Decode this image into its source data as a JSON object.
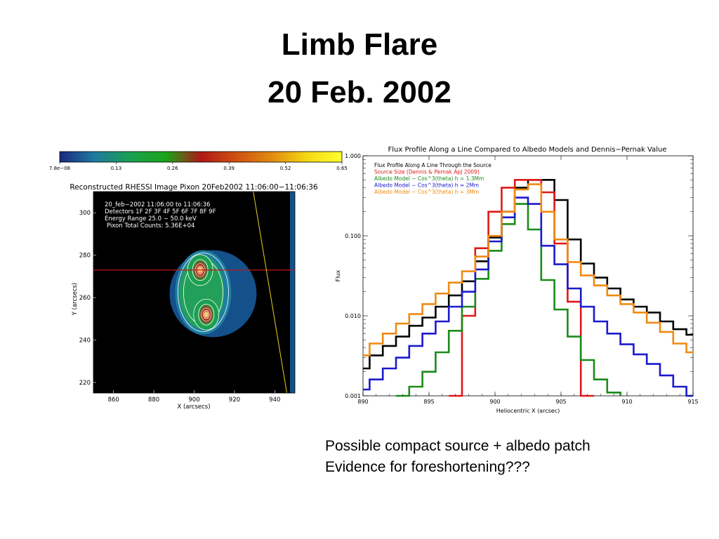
{
  "slide": {
    "title_line1": "Limb Flare",
    "title_line2": "20 Feb. 2002",
    "caption_line1": "Possible compact source + albedo patch",
    "caption_line2": "Evidence for foreshortening???"
  },
  "chart_data": [
    {
      "type": "heatmap",
      "title": "Reconstructed RHESSI Image Pixon 20Feb2002 11:06:00−11:06:36",
      "xlabel": "X (arcsecs)",
      "ylabel": "Y (arcsecs)",
      "xlim": [
        850,
        950
      ],
      "ylim": [
        215,
        310
      ],
      "xticks": [
        "860",
        "880",
        "900",
        "920",
        "940"
      ],
      "yticks": [
        "220",
        "240",
        "260",
        "280",
        "300"
      ],
      "colorbar": {
        "ticks": [
          "7.8e−08",
          "0.13",
          "0.26",
          "0.39",
          "0.52",
          "0.65"
        ],
        "colors": [
          "#1a2a80",
          "#1e7aa0",
          "#1aa050",
          "#19a519",
          "#b01818",
          "#d05010",
          "#e08a10",
          "#f5d812",
          "#ffff30"
        ]
      },
      "annotations": [
        "20_feb−2002 11:06:00 to 11:06:36",
        "Detectors 1F 2F 3F 4F 5F 6F 7F 8F 9F",
        "Energy Range 25.0 − 50.0 keV",
        "Pixon Total Counts: 5.36E+04"
      ],
      "sources": [
        {
          "x": 903,
          "y": 273,
          "peak": "high"
        },
        {
          "x": 906,
          "y": 252,
          "peak": "high"
        }
      ],
      "profile_line_y": 273,
      "limb_line": {
        "x1": 929,
        "y1": 312,
        "x2": 946,
        "y2": 215
      }
    },
    {
      "type": "line",
      "title": "Flux Profile Along a Line Compared to Albedo Models and Dennis−Pernak Value",
      "xlabel": "Heliocentric X (arcsec)",
      "ylabel": "Flux",
      "xlim": [
        890,
        915
      ],
      "ylim": [
        0.001,
        1.0
      ],
      "yscale": "log",
      "xticks": [
        "890",
        "895",
        "900",
        "905",
        "910",
        "915"
      ],
      "yticks": [
        "0.001",
        "0.010",
        "0.100",
        "1.000"
      ],
      "legend_placement": "top-left",
      "x": [
        890,
        891,
        892,
        893,
        894,
        895,
        896,
        897,
        898,
        899,
        900,
        901,
        902,
        903,
        904,
        905,
        906,
        907,
        908,
        909,
        910,
        911,
        912,
        913,
        914,
        915
      ],
      "series": [
        {
          "name": "Flux Profile Along A Line Through the Source",
          "color": "#000000",
          "values": [
            0.0022,
            0.0032,
            0.0042,
            0.0055,
            0.0075,
            0.0095,
            0.013,
            0.018,
            0.027,
            0.048,
            0.095,
            0.2,
            0.4,
            0.5,
            0.5,
            0.28,
            0.09,
            0.045,
            0.03,
            0.022,
            0.016,
            0.013,
            0.011,
            0.0085,
            0.0068,
            0.0058
          ]
        },
        {
          "name": "Source Size (Dennis & Pernak ApJ 2009)",
          "color": "#e01818",
          "values": [
            null,
            null,
            null,
            null,
            null,
            null,
            null,
            0.001,
            0.01,
            0.07,
            0.2,
            0.4,
            0.5,
            0.5,
            0.35,
            0.08,
            0.015,
            0.001,
            null,
            null,
            null,
            null,
            null,
            null,
            null,
            null
          ]
        },
        {
          "name": "Albedo Model − Cos^3(theta) h = 1.3Mm",
          "color": "#1a8a1a",
          "values": [
            null,
            null,
            null,
            0.0009,
            0.0013,
            0.002,
            0.0035,
            0.0065,
            0.013,
            0.029,
            0.065,
            0.14,
            0.25,
            0.12,
            0.028,
            0.012,
            0.0055,
            0.0028,
            0.0016,
            0.0011,
            null,
            null,
            null,
            null,
            null,
            null
          ]
        },
        {
          "name": "Albedo Model − Cos^3(theta) h = 2Mm",
          "color": "#1a1acc",
          "values": [
            0.0012,
            0.0016,
            0.0022,
            0.003,
            0.0042,
            0.006,
            0.0085,
            0.013,
            0.02,
            0.038,
            0.085,
            0.17,
            0.3,
            0.25,
            0.075,
            0.044,
            0.022,
            0.013,
            0.0085,
            0.006,
            0.0044,
            0.0033,
            0.0025,
            0.0018,
            0.0013,
            0.001
          ]
        },
        {
          "name": "Albedo Model − Cos^3(theta) h = 3Mm",
          "color": "#f08a10",
          "values": [
            0.0032,
            0.0045,
            0.006,
            0.008,
            0.0105,
            0.014,
            0.019,
            0.026,
            0.036,
            0.055,
            0.1,
            0.2,
            0.38,
            0.44,
            0.2,
            0.09,
            0.047,
            0.032,
            0.024,
            0.018,
            0.014,
            0.011,
            0.0082,
            0.0063,
            0.0045,
            0.0035
          ]
        }
      ]
    }
  ]
}
